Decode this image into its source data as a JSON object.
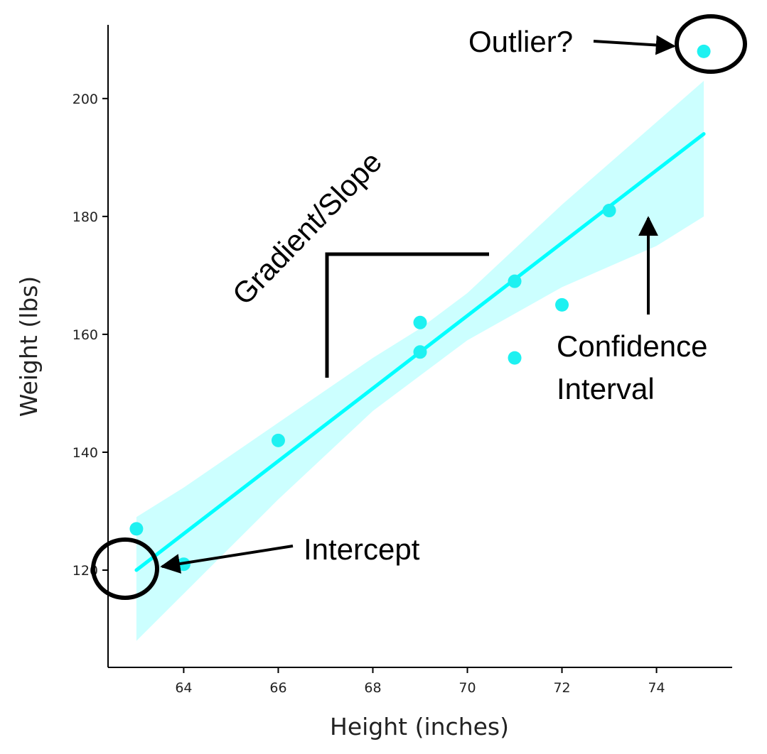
{
  "chart_data": {
    "type": "scatter",
    "title": "",
    "xlabel": "Height (inches)",
    "ylabel": "Weight (lbs)",
    "xlim": [
      62.4,
      75.6
    ],
    "ylim": [
      103.5,
      212.5
    ],
    "xticks": [
      64,
      66,
      68,
      70,
      72,
      74
    ],
    "yticks": [
      120,
      140,
      160,
      180,
      200
    ],
    "grid": false,
    "legend": "none",
    "color": "#1ef1f1",
    "points": [
      {
        "x": 63,
        "y": 127
      },
      {
        "x": 64,
        "y": 121
      },
      {
        "x": 66,
        "y": 142
      },
      {
        "x": 69,
        "y": 162
      },
      {
        "x": 69,
        "y": 157
      },
      {
        "x": 71,
        "y": 169
      },
      {
        "x": 71,
        "y": 156
      },
      {
        "x": 72,
        "y": 165
      },
      {
        "x": 73,
        "y": 181
      },
      {
        "x": 75,
        "y": 208
      }
    ],
    "regression": {
      "type": "line",
      "color": "#00ffff",
      "x": [
        63,
        75
      ],
      "y": [
        120,
        194
      ]
    },
    "confidence_band": {
      "type": "area",
      "color": "#ccffff",
      "x": [
        63,
        64,
        66,
        68,
        69,
        70,
        72,
        74,
        75
      ],
      "lower": [
        108,
        116,
        132,
        147,
        153,
        159,
        168,
        175,
        180
      ],
      "upper": [
        129,
        134,
        145,
        156,
        161,
        167,
        182,
        196,
        203
      ]
    },
    "annotations": {
      "outlier": "Outlier?",
      "slope": "Gradient/Slope",
      "ci_line1": "Confidence",
      "ci_line2": "Interval",
      "intercept": "Intercept"
    }
  }
}
